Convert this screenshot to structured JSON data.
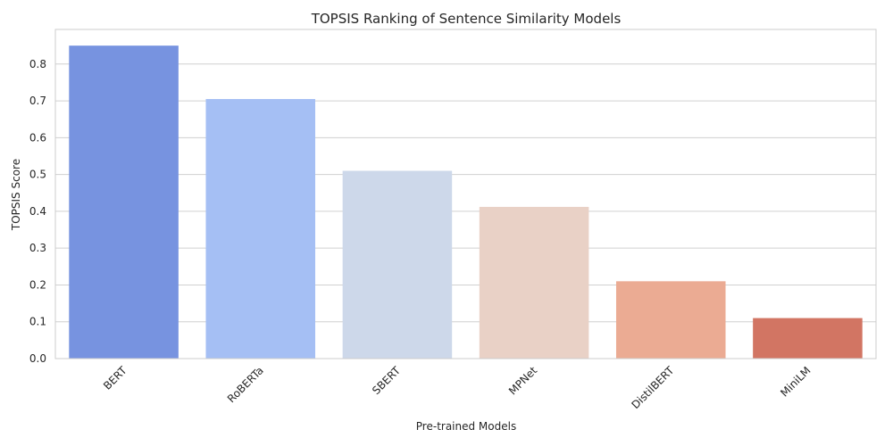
{
  "chart_data": {
    "type": "bar",
    "title": "TOPSIS Ranking of Sentence Similarity Models",
    "xlabel": "Pre-trained Models",
    "ylabel": "TOPSIS Score",
    "categories": [
      "BERT",
      "RoBERTa",
      "SBERT",
      "MPNet",
      "DistilBERT",
      "MiniLM"
    ],
    "values": [
      0.85,
      0.705,
      0.51,
      0.412,
      0.21,
      0.11
    ],
    "colors": [
      "#7793e0",
      "#a5bff4",
      "#cdd8ea",
      "#e9d1c6",
      "#ebab93",
      "#d27563"
    ],
    "ylim": [
      0,
      0.894
    ],
    "yticks": [
      0.0,
      0.1,
      0.2,
      0.3,
      0.4,
      0.5,
      0.6,
      0.7,
      0.8
    ],
    "ytick_labels": [
      "0.0",
      "0.1",
      "0.2",
      "0.3",
      "0.4",
      "0.5",
      "0.6",
      "0.7",
      "0.8"
    ],
    "grid": "horizontal",
    "xtick_rotation": 45
  }
}
